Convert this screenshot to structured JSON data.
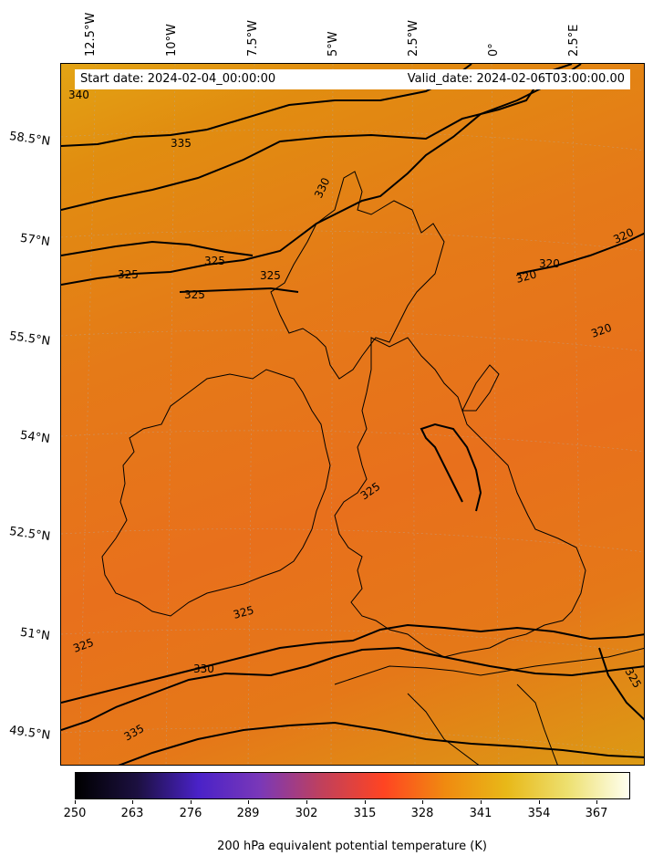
{
  "header": {
    "start_date": "Start date: 2024-02-04_00:00:00",
    "valid_date": "Valid_date: 2024-02-06T03:00:00.00"
  },
  "axes": {
    "longitude_labels": [
      "12.5°W",
      "10°W",
      "7.5°W",
      "5°W",
      "2.5°W",
      "0°",
      "2.5°E"
    ],
    "latitude_labels": [
      "58.5°N",
      "57°N",
      "55.5°N",
      "54°N",
      "52.5°N",
      "51°N",
      "49.5°N"
    ]
  },
  "contour_labels": [
    "340",
    "335",
    "330",
    "325",
    "325",
    "325",
    "325",
    "320",
    "320",
    "320",
    "320",
    "325",
    "325",
    "325",
    "325",
    "330",
    "335"
  ],
  "colorbar": {
    "title": "200 hPa equivalent potential temperature (K)",
    "ticks": [
      "250",
      "263",
      "276",
      "289",
      "302",
      "315",
      "328",
      "341",
      "354",
      "367"
    ],
    "colors": [
      "#000000",
      "#1c1040",
      "#4a22c8",
      "#7a38b8",
      "#c0405c",
      "#ff4422",
      "#f08a10",
      "#e8b818",
      "#ede070",
      "#fffff0"
    ]
  }
}
